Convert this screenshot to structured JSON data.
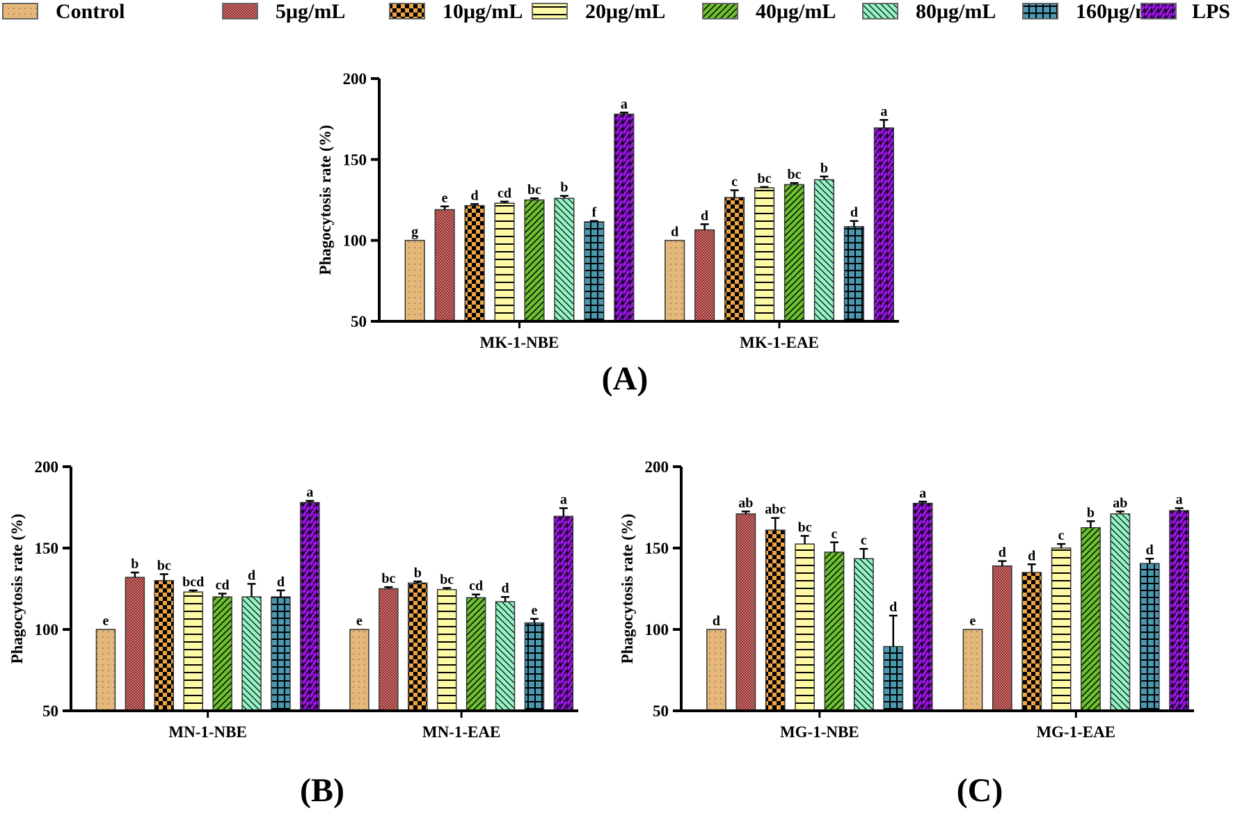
{
  "legend": [
    {
      "label": "Control",
      "color": "#e5b87a",
      "pattern": "dots"
    },
    {
      "label": "5μg/mL",
      "color": "#e07272",
      "pattern": "fine-check"
    },
    {
      "label": "10μg/mL",
      "color": "#f0a444",
      "pattern": "checker"
    },
    {
      "label": "20μg/mL",
      "color": "#fdf9a4",
      "pattern": "hlines"
    },
    {
      "label": "40μg/mL",
      "color": "#6cc030",
      "pattern": "diag-up"
    },
    {
      "label": "80μg/mL",
      "color": "#94f2c4",
      "pattern": "diag-down"
    },
    {
      "label": "160μg/mL",
      "color": "#4a98b0",
      "pattern": "grid"
    },
    {
      "label": "LPS",
      "color": "#9a14e4",
      "pattern": "zigzag"
    }
  ],
  "chart_data": [
    {
      "type": "bar",
      "panel_label": "(A)",
      "ylabel": "Phagocytosis rate (%)",
      "ylim": [
        50,
        200
      ],
      "yticks": [
        "50",
        "100",
        "150",
        "200"
      ],
      "categories": [
        "MK-1-NBE",
        "MK-1-EAE"
      ],
      "groups": [
        {
          "values": [
            100,
            119,
            121.5,
            123,
            125,
            126,
            111.5,
            178
          ],
          "errors": [
            0,
            2,
            1,
            1,
            1,
            1.5,
            0.5,
            1
          ],
          "letters": [
            "g",
            "e",
            "d",
            "cd",
            "bc",
            "b",
            "f",
            "a"
          ]
        },
        {
          "values": [
            100,
            106.5,
            126.5,
            132.5,
            134.5,
            137.5,
            108.5,
            169.5
          ],
          "errors": [
            0,
            3.5,
            4.5,
            0.5,
            1,
            2,
            3.5,
            5
          ],
          "letters": [
            "d",
            "d",
            "c",
            "bc",
            "bc",
            "b",
            "d",
            "a"
          ]
        }
      ]
    },
    {
      "type": "bar",
      "panel_label": "(B)",
      "ylabel": "Phagocytosis rate (%)",
      "ylim": [
        50,
        200
      ],
      "yticks": [
        "50",
        "100",
        "150",
        "200"
      ],
      "categories": [
        "MN-1-NBE",
        "MN-1-EAE"
      ],
      "groups": [
        {
          "values": [
            100,
            132,
            130,
            123,
            120,
            120,
            120,
            178
          ],
          "errors": [
            0,
            3,
            4,
            1,
            2,
            8,
            4,
            1
          ],
          "letters": [
            "e",
            "b",
            "bc",
            "bcd",
            "cd",
            "d",
            "d",
            "a"
          ]
        },
        {
          "values": [
            100,
            125,
            128.5,
            124.5,
            119.5,
            117,
            104,
            169.5
          ],
          "errors": [
            0,
            1,
            1,
            1,
            2,
            3,
            2.5,
            5
          ],
          "letters": [
            "e",
            "bc",
            "b",
            "bc",
            "cd",
            "d",
            "e",
            "a"
          ]
        }
      ]
    },
    {
      "type": "bar",
      "panel_label": "(C)",
      "ylabel": "Phagocytosis rate (%)",
      "ylim": [
        50,
        200
      ],
      "yticks": [
        "50",
        "100",
        "150",
        "200"
      ],
      "categories": [
        "MG-1-NBE",
        "MG-1-EAE"
      ],
      "groups": [
        {
          "values": [
            100,
            171,
            161,
            152.5,
            147.5,
            143.5,
            89.5,
            177.5
          ],
          "errors": [
            0,
            1.5,
            7.5,
            5,
            6,
            6,
            19,
            1
          ],
          "letters": [
            "d",
            "ab",
            "abc",
            "bc",
            "c",
            "c",
            "d",
            "a"
          ]
        },
        {
          "values": [
            100,
            139,
            135,
            150,
            162.5,
            171,
            140.5,
            173
          ],
          "errors": [
            0,
            3,
            5,
            2.5,
            4,
            1.5,
            3,
            1.5
          ],
          "letters": [
            "e",
            "d",
            "d",
            "c",
            "b",
            "ab",
            "d",
            "a"
          ]
        }
      ]
    }
  ]
}
